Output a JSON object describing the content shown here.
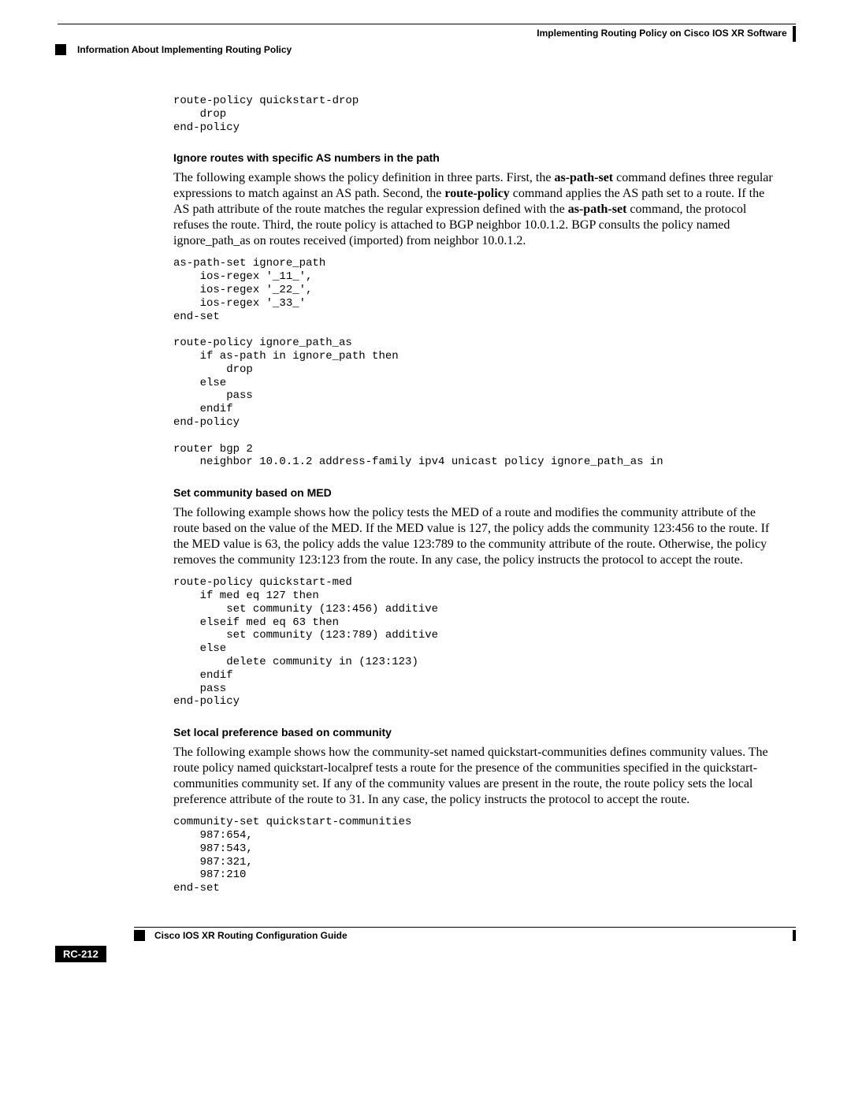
{
  "header": {
    "chapter_title": "Implementing Routing Policy on Cisco IOS XR Software",
    "section_title": "Information About Implementing Routing Policy"
  },
  "code_intro": "route-policy quickstart-drop\n    drop\nend-policy",
  "sec1": {
    "heading": "Ignore routes with specific AS numbers in the path",
    "para_parts": {
      "t1": "The following example shows the policy definition in three parts. First, the ",
      "b1": "as-path-set",
      "t2": " command defines three regular expressions to match against an AS path. Second, the ",
      "b2": "route-policy",
      "t3": " command applies the AS path set to a route. If the AS path attribute of the route matches the regular expression defined with the ",
      "b3": "as-path-set",
      "t4": " command, the protocol refuses the route. Third, the route policy is attached to BGP neighbor 10.0.1.2. BGP consults the policy named ignore_path_as on routes received (imported) from neighbor 10.0.1.2."
    },
    "code": "as-path-set ignore_path\n    ios-regex '_11_',\n    ios-regex '_22_',\n    ios-regex '_33_'\nend-set\n\nroute-policy ignore_path_as\n    if as-path in ignore_path then\n        drop\n    else\n        pass\n    endif\nend-policy\n\nrouter bgp 2\n    neighbor 10.0.1.2 address-family ipv4 unicast policy ignore_path_as in"
  },
  "sec2": {
    "heading": "Set community based on MED",
    "para": "The following example shows how the policy tests the MED of a route and modifies the community attribute of the route based on the value of the MED. If the MED value is 127, the policy adds the community 123:456 to the route. If the MED value is 63, the policy adds the value 123:789 to the community attribute of the route. Otherwise, the policy removes the community 123:123 from the route. In any case, the policy instructs the protocol to accept the route.",
    "code": "route-policy quickstart-med\n    if med eq 127 then\n        set community (123:456) additive\n    elseif med eq 63 then\n        set community (123:789) additive\n    else\n        delete community in (123:123)\n    endif\n    pass\nend-policy"
  },
  "sec3": {
    "heading": "Set local preference based on community",
    "para": "The following example shows how the community-set named quickstart-communities defines community values. The route policy named quickstart-localpref tests a route for the presence of the communities specified in the quickstart-communities community set. If any of the community values are present in the route, the route policy sets the local preference attribute of the route to 31. In any case, the policy instructs the protocol to accept the route.",
    "code": "community-set quickstart-communities\n    987:654,\n    987:543,\n    987:321,\n    987:210\nend-set"
  },
  "footer": {
    "guide_title": "Cisco IOS XR Routing Configuration Guide",
    "page_number": "RC-212"
  }
}
